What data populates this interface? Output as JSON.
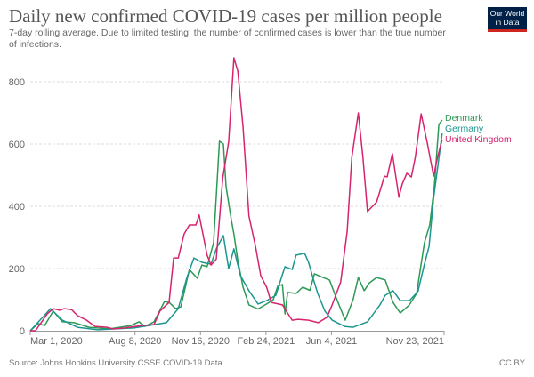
{
  "header": {
    "title": "Daily new confirmed COVID-19 cases per million people",
    "subtitle": "7-day rolling average. Due to limited testing, the number of confirmed cases is lower than the true number of infections.",
    "logo_text": "Our World in Data"
  },
  "footer": {
    "source": "Source: Johns Hopkins University CSSE COVID-19 Data",
    "license": "CC BY"
  },
  "chart_data": {
    "type": "line",
    "title": "Daily new confirmed COVID-19 cases per million people",
    "xlabel": "",
    "ylabel": "",
    "xlim": [
      "2020-03-01",
      "2021-11-23"
    ],
    "ylim": [
      0,
      880
    ],
    "grid": "horizontal dashed",
    "legend": "right (labels at line ends)",
    "x_ticks": [
      {
        "date": "2020-03-01",
        "label": "Mar 1, 2020"
      },
      {
        "date": "2020-08-08",
        "label": "Aug 8, 2020"
      },
      {
        "date": "2020-11-16",
        "label": "Nov 16, 2020"
      },
      {
        "date": "2021-02-24",
        "label": "Feb 24, 2021"
      },
      {
        "date": "2021-06-04",
        "label": "Jun 4, 2021"
      },
      {
        "date": "2021-11-23",
        "label": "Nov 23, 2021"
      }
    ],
    "y_ticks": [
      0,
      200,
      400,
      600,
      800
    ],
    "series": [
      {
        "name": "Denmark",
        "color": "#2c9a55",
        "points": [
          [
            "2020-03-01",
            0
          ],
          [
            "2020-03-13",
            23
          ],
          [
            "2020-03-23",
            17
          ],
          [
            "2020-04-05",
            63
          ],
          [
            "2020-04-19",
            29
          ],
          [
            "2020-05-07",
            26
          ],
          [
            "2020-05-30",
            11
          ],
          [
            "2020-06-30",
            6
          ],
          [
            "2020-08-02",
            17
          ],
          [
            "2020-08-14",
            29
          ],
          [
            "2020-08-23",
            14
          ],
          [
            "2020-09-06",
            29
          ],
          [
            "2020-09-22",
            94
          ],
          [
            "2020-09-29",
            91
          ],
          [
            "2020-10-09",
            71
          ],
          [
            "2020-10-17",
            77
          ],
          [
            "2020-10-30",
            197
          ],
          [
            "2020-11-11",
            169
          ],
          [
            "2020-11-18",
            211
          ],
          [
            "2020-11-26",
            206
          ],
          [
            "2020-12-06",
            283
          ],
          [
            "2020-12-15",
            609
          ],
          [
            "2020-12-21",
            600
          ],
          [
            "2020-12-25",
            463
          ],
          [
            "2021-01-02",
            357
          ],
          [
            "2021-01-06",
            311
          ],
          [
            "2021-01-12",
            226
          ],
          [
            "2021-01-20",
            140
          ],
          [
            "2021-01-29",
            83
          ],
          [
            "2021-02-12",
            70
          ],
          [
            "2021-02-25",
            86
          ],
          [
            "2021-03-07",
            100
          ],
          [
            "2021-03-14",
            143
          ],
          [
            "2021-03-21",
            149
          ],
          [
            "2021-03-25",
            54
          ],
          [
            "2021-03-29",
            123
          ],
          [
            "2021-04-11",
            120
          ],
          [
            "2021-04-21",
            140
          ],
          [
            "2021-05-02",
            130
          ],
          [
            "2021-05-09",
            183
          ],
          [
            "2021-05-22",
            171
          ],
          [
            "2021-06-01",
            163
          ],
          [
            "2021-06-14",
            91
          ],
          [
            "2021-06-25",
            34
          ],
          [
            "2021-07-07",
            100
          ],
          [
            "2021-07-15",
            171
          ],
          [
            "2021-07-24",
            129
          ],
          [
            "2021-08-01",
            154
          ],
          [
            "2021-08-12",
            171
          ],
          [
            "2021-08-25",
            163
          ],
          [
            "2021-09-06",
            91
          ],
          [
            "2021-09-17",
            57
          ],
          [
            "2021-10-01",
            83
          ],
          [
            "2021-10-12",
            120
          ],
          [
            "2021-10-24",
            283
          ],
          [
            "2021-11-01",
            340
          ],
          [
            "2021-11-08",
            463
          ],
          [
            "2021-11-15",
            663
          ],
          [
            "2021-11-20",
            677
          ]
        ]
      },
      {
        "name": "Germany",
        "color": "#1c9690",
        "points": [
          [
            "2020-03-01",
            0
          ],
          [
            "2020-04-01",
            71
          ],
          [
            "2020-04-19",
            34
          ],
          [
            "2020-05-12",
            11
          ],
          [
            "2020-06-12",
            3
          ],
          [
            "2020-08-06",
            9
          ],
          [
            "2020-08-29",
            17
          ],
          [
            "2020-09-25",
            26
          ],
          [
            "2020-10-13",
            71
          ],
          [
            "2020-10-26",
            169
          ],
          [
            "2020-11-06",
            234
          ],
          [
            "2020-11-18",
            220
          ],
          [
            "2020-12-02",
            214
          ],
          [
            "2020-12-10",
            263
          ],
          [
            "2020-12-21",
            306
          ],
          [
            "2020-12-29",
            200
          ],
          [
            "2021-01-06",
            263
          ],
          [
            "2021-01-16",
            177
          ],
          [
            "2021-01-29",
            129
          ],
          [
            "2021-02-12",
            86
          ],
          [
            "2021-02-25",
            97
          ],
          [
            "2021-03-11",
            114
          ],
          [
            "2021-03-25",
            206
          ],
          [
            "2021-04-05",
            197
          ],
          [
            "2021-04-11",
            243
          ],
          [
            "2021-04-24",
            249
          ],
          [
            "2021-04-30",
            220
          ],
          [
            "2021-05-07",
            169
          ],
          [
            "2021-05-14",
            120
          ],
          [
            "2021-05-25",
            63
          ],
          [
            "2021-06-05",
            34
          ],
          [
            "2021-06-24",
            14
          ],
          [
            "2021-07-07",
            11
          ],
          [
            "2021-07-29",
            29
          ],
          [
            "2021-08-17",
            83
          ],
          [
            "2021-08-25",
            114
          ],
          [
            "2021-09-06",
            129
          ],
          [
            "2021-09-17",
            97
          ],
          [
            "2021-10-01",
            97
          ],
          [
            "2021-10-14",
            126
          ],
          [
            "2021-10-24",
            214
          ],
          [
            "2021-10-31",
            271
          ],
          [
            "2021-11-07",
            426
          ],
          [
            "2021-11-20",
            634
          ]
        ]
      },
      {
        "name": "United Kingdom",
        "color": "#d6246e",
        "points": [
          [
            "2020-03-01",
            0
          ],
          [
            "2020-03-09",
            0
          ],
          [
            "2020-03-27",
            54
          ],
          [
            "2020-04-05",
            71
          ],
          [
            "2020-04-15",
            66
          ],
          [
            "2020-04-22",
            71
          ],
          [
            "2020-05-03",
            68
          ],
          [
            "2020-05-12",
            49
          ],
          [
            "2020-05-26",
            34
          ],
          [
            "2020-06-08",
            14
          ],
          [
            "2020-06-26",
            11
          ],
          [
            "2020-07-05",
            6
          ],
          [
            "2020-07-23",
            9
          ],
          [
            "2020-08-19",
            17
          ],
          [
            "2020-09-06",
            20
          ],
          [
            "2020-09-15",
            63
          ],
          [
            "2020-09-29",
            91
          ],
          [
            "2020-10-06",
            234
          ],
          [
            "2020-10-13",
            234
          ],
          [
            "2020-10-22",
            311
          ],
          [
            "2020-10-30",
            340
          ],
          [
            "2020-11-09",
            340
          ],
          [
            "2020-11-14",
            372
          ],
          [
            "2020-11-26",
            243
          ],
          [
            "2020-12-02",
            211
          ],
          [
            "2020-12-10",
            230
          ],
          [
            "2020-12-20",
            491
          ],
          [
            "2020-12-29",
            606
          ],
          [
            "2021-01-06",
            877
          ],
          [
            "2021-01-12",
            834
          ],
          [
            "2021-01-20",
            654
          ],
          [
            "2021-01-29",
            369
          ],
          [
            "2021-02-08",
            271
          ],
          [
            "2021-02-16",
            177
          ],
          [
            "2021-02-25",
            140
          ],
          [
            "2021-03-04",
            91
          ],
          [
            "2021-03-21",
            83
          ],
          [
            "2021-04-05",
            34
          ],
          [
            "2021-04-14",
            37
          ],
          [
            "2021-04-30",
            34
          ],
          [
            "2021-05-15",
            26
          ],
          [
            "2021-05-28",
            43
          ],
          [
            "2021-06-05",
            83
          ],
          [
            "2021-06-18",
            157
          ],
          [
            "2021-06-28",
            320
          ],
          [
            "2021-07-05",
            557
          ],
          [
            "2021-07-15",
            700
          ],
          [
            "2021-07-22",
            557
          ],
          [
            "2021-07-29",
            383
          ],
          [
            "2021-08-12",
            414
          ],
          [
            "2021-08-24",
            497
          ],
          [
            "2021-08-28",
            494
          ],
          [
            "2021-09-05",
            569
          ],
          [
            "2021-09-15",
            429
          ],
          [
            "2021-09-20",
            471
          ],
          [
            "2021-09-27",
            506
          ],
          [
            "2021-10-04",
            494
          ],
          [
            "2021-10-10",
            557
          ],
          [
            "2021-10-19",
            697
          ],
          [
            "2021-10-28",
            606
          ],
          [
            "2021-11-07",
            497
          ],
          [
            "2021-11-13",
            557
          ],
          [
            "2021-11-20",
            614
          ]
        ]
      }
    ]
  }
}
